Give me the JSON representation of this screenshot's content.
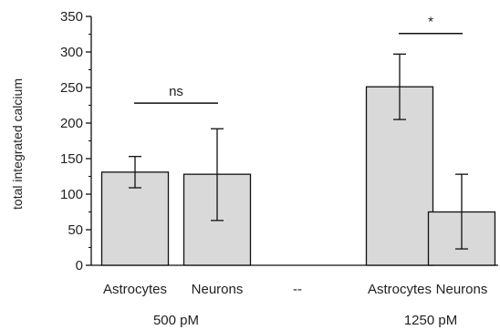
{
  "chart_data": {
    "type": "bar",
    "ylabel": "total integrated calcium",
    "xlabel": "",
    "title": "",
    "ylim": [
      0,
      350
    ],
    "yticks": [
      0,
      50,
      100,
      150,
      200,
      250,
      300,
      350
    ],
    "grid": false,
    "categories": [
      "Astrocytes",
      "Neurons",
      "--",
      "Astrocytes",
      "Neurons"
    ],
    "values": [
      131,
      128,
      null,
      251,
      75
    ],
    "error_low": [
      109,
      63,
      null,
      205,
      23
    ],
    "error_high": [
      153,
      192,
      null,
      297,
      128
    ],
    "groups": [
      {
        "label": "500 pM",
        "categories": [
          0,
          1
        ]
      },
      {
        "label": "1250 pM",
        "categories": [
          3,
          4
        ]
      }
    ],
    "significance": [
      {
        "from": 0,
        "to": 1,
        "y": 228,
        "label": "ns"
      },
      {
        "from": 3,
        "to": 4,
        "y": 326,
        "label": "*"
      }
    ],
    "colors": {
      "bar_fill": "#d9d9d9",
      "bar_stroke": "#111111",
      "axis": "#111111"
    }
  }
}
